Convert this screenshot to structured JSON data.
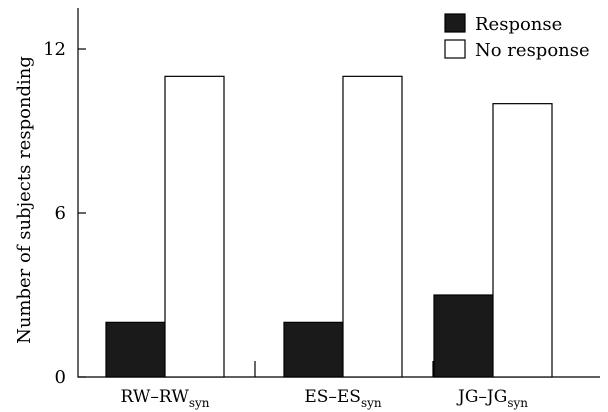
{
  "chart_data": {
    "type": "bar",
    "categories": [
      {
        "main": "RW–RW",
        "sub": "syn"
      },
      {
        "main": "ES–ES",
        "sub": "syn"
      },
      {
        "main": "JG–JG",
        "sub": "syn"
      }
    ],
    "series": [
      {
        "name": "Response",
        "values": [
          2,
          2,
          3
        ],
        "color": "#1a1a1a"
      },
      {
        "name": "No response",
        "values": [
          11,
          11,
          10
        ],
        "color": "#ffffff"
      }
    ],
    "ylabel": "Number of subjects responding",
    "xlabel": "",
    "ylim": [
      0,
      13.5
    ],
    "yticks": [
      0,
      6,
      12
    ],
    "grid": false,
    "legend_position": "top-right"
  }
}
